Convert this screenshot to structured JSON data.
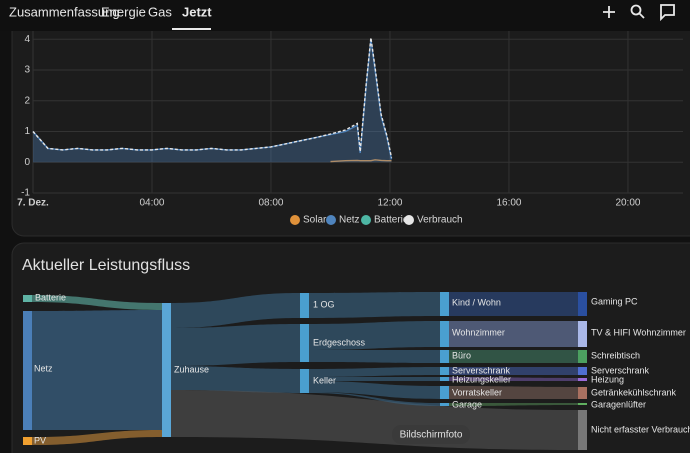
{
  "tabs": [
    "Zusammenfassung",
    "Energie",
    "Gas",
    "Jetzt"
  ],
  "chart_data": {
    "type": "line",
    "x": [
      0,
      0.5,
      1,
      1.5,
      2,
      2.5,
      3,
      3.5,
      4,
      4.5,
      5,
      5.5,
      6,
      6.5,
      7,
      7.5,
      8,
      8.5,
      9,
      9.5,
      10,
      10.5,
      10.9,
      11.0,
      11.2,
      11.36,
      11.5,
      11.7,
      11.9,
      12.05
    ],
    "xlim": [
      0,
      21.85
    ],
    "xticks": [
      {
        "value": 0,
        "label": "7. Dez."
      },
      {
        "value": 4,
        "label": "04:00"
      },
      {
        "value": 8,
        "label": "08:00"
      },
      {
        "value": 12,
        "label": "12:00"
      },
      {
        "value": 16,
        "label": "16:00"
      },
      {
        "value": 20,
        "label": "20:00"
      }
    ],
    "ylim": [
      -1,
      4.3
    ],
    "yticks": [
      -1,
      0,
      1,
      2,
      3,
      4
    ],
    "grid": true,
    "series": [
      {
        "name": "Solar",
        "color": "#e0913a",
        "values": [
          null,
          null,
          null,
          null,
          null,
          null,
          null,
          null,
          null,
          null,
          null,
          null,
          null,
          null,
          null,
          null,
          null,
          null,
          null,
          null,
          0.02,
          0.05,
          0.06,
          0.05,
          0.05,
          0.05,
          0.08,
          0.06,
          0.05,
          0.05
        ]
      },
      {
        "name": "Netz",
        "color": "#4f84bd",
        "area": true,
        "values": [
          1.0,
          0.45,
          0.4,
          0.45,
          0.4,
          0.4,
          0.45,
          0.4,
          0.4,
          0.45,
          0.4,
          0.4,
          0.45,
          0.4,
          0.4,
          0.45,
          0.5,
          0.6,
          0.7,
          0.8,
          0.9,
          1.0,
          1.2,
          0.3,
          2.5,
          4.0,
          3.0,
          1.5,
          0.8,
          0.1
        ]
      },
      {
        "name": "Batterie",
        "color": "#4db6a4",
        "values": [
          null,
          null,
          null,
          null,
          null,
          null,
          null,
          null,
          null,
          null,
          null,
          null,
          null,
          null,
          null,
          null,
          null,
          null,
          null,
          null,
          null,
          null,
          null,
          null,
          null,
          null,
          null,
          null,
          null,
          null
        ]
      },
      {
        "name": "Verbrauch",
        "color": "#e6e6e6",
        "dashed": true,
        "values": [
          1.0,
          0.45,
          0.4,
          0.45,
          0.4,
          0.4,
          0.45,
          0.4,
          0.4,
          0.45,
          0.4,
          0.4,
          0.45,
          0.4,
          0.4,
          0.45,
          0.5,
          0.6,
          0.7,
          0.8,
          0.92,
          1.05,
          1.26,
          0.35,
          2.55,
          4.05,
          3.08,
          1.56,
          0.85,
          0.15
        ]
      }
    ]
  },
  "energy_flow": {
    "title": "Aktueller Leistungsfluss",
    "nodes": [
      {
        "label": "Batterie"
      },
      {
        "label": "Netz"
      },
      {
        "label": "PV"
      },
      {
        "label": "Zuhause"
      },
      {
        "label": "1 OG"
      },
      {
        "label": "Erdgeschoss"
      },
      {
        "label": "Keller"
      },
      {
        "label": "Kind / Wohn"
      },
      {
        "label": "Wohnzimmer"
      },
      {
        "label": "Büro"
      },
      {
        "label": "Serverschrank"
      },
      {
        "label": "Heizungskeller"
      },
      {
        "label": "Vorratskeller"
      },
      {
        "label": "Garage"
      },
      {
        "label": "Gaming PC"
      },
      {
        "label": "TV & HIFI Wohnzimmer"
      },
      {
        "label": "Schreibtisch"
      },
      {
        "label": "Serverschrank"
      },
      {
        "label": "Heizung"
      },
      {
        "label": "Getränkekühlschrank"
      },
      {
        "label": "Garagenlüfter"
      },
      {
        "label": "Nicht erfasster Verbrauch"
      }
    ]
  },
  "tooltip": "Bildschirmfoto"
}
